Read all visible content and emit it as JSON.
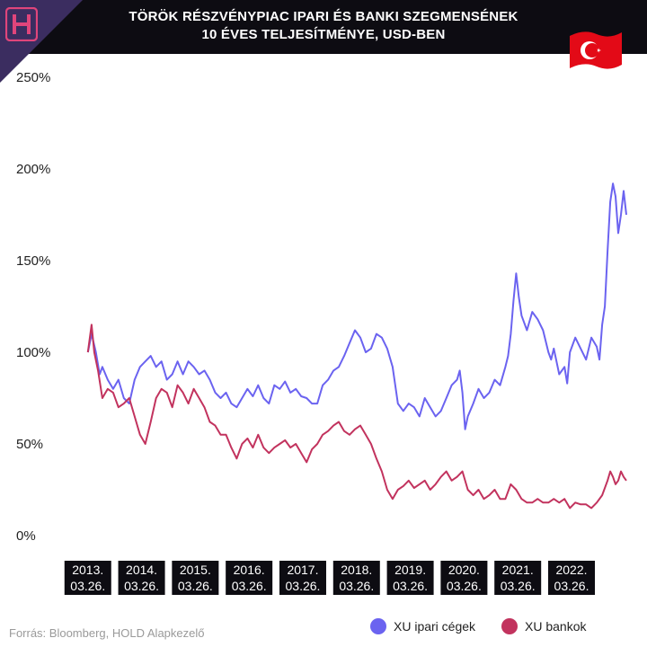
{
  "header": {
    "title_line1": "TÖRÖK RÉSZVÉNYPIAC IPARI ÉS BANKI SZEGMENSÉNEK",
    "title_line2": "10 ÉVES TELJESÍTMÉNYE, USD-BEN",
    "logo_letter": "H",
    "flag": "turkey-flag-icon"
  },
  "source": "Forrás: Bloomberg, HOLD Alapkezelő",
  "colors": {
    "industrial": "#6b63f0",
    "banks": "#c2335e",
    "header_bg": "#0d0c12",
    "logo_bg": "#3b2d60",
    "logo_accent": "#e0457b",
    "flag_red": "#e30a17"
  },
  "chart_data": {
    "type": "line",
    "title": "TÖRÖK RÉSZVÉNYPIAC IPARI ÉS BANKI SZEGMENSÉNEK 10 ÉVES TELJESÍTMÉNYE, USD-BEN",
    "xlabel": "",
    "ylabel": "",
    "ylim": [
      0,
      250
    ],
    "xlim": [
      2013.0,
      2023.3
    ],
    "yticks": [
      0,
      50,
      100,
      150,
      200,
      250
    ],
    "ytick_labels": [
      "0%",
      "50%",
      "100%",
      "150%",
      "200%",
      "250%"
    ],
    "xticks": [
      2013.23,
      2014.23,
      2015.23,
      2016.23,
      2017.23,
      2018.23,
      2019.23,
      2020.23,
      2021.23,
      2022.23
    ],
    "xtick_labels": [
      "2013.\n03.26.",
      "2014.\n03.26.",
      "2015.\n03.26.",
      "2016.\n03.26.",
      "2017.\n03.26.",
      "2018.\n03.26.",
      "2019.\n03.26.",
      "2020.\n03.26.",
      "2021.\n03.26.",
      "2022.\n03.26."
    ],
    "grid": false,
    "legend_position": "bottom-right",
    "series": [
      {
        "name": "XU ipari cégek",
        "x": [
          2013.23,
          2013.3,
          2013.38,
          2013.45,
          2013.5,
          2013.6,
          2013.7,
          2013.8,
          2013.9,
          2014.0,
          2014.1,
          2014.2,
          2014.3,
          2014.4,
          2014.5,
          2014.6,
          2014.7,
          2014.8,
          2014.9,
          2015.0,
          2015.1,
          2015.2,
          2015.3,
          2015.4,
          2015.5,
          2015.6,
          2015.7,
          2015.8,
          2015.9,
          2016.0,
          2016.1,
          2016.2,
          2016.3,
          2016.4,
          2016.5,
          2016.6,
          2016.7,
          2016.8,
          2016.9,
          2017.0,
          2017.1,
          2017.2,
          2017.3,
          2017.4,
          2017.5,
          2017.6,
          2017.7,
          2017.8,
          2017.9,
          2018.0,
          2018.1,
          2018.2,
          2018.3,
          2018.4,
          2018.5,
          2018.6,
          2018.7,
          2018.8,
          2018.9,
          2019.0,
          2019.1,
          2019.2,
          2019.3,
          2019.4,
          2019.5,
          2019.6,
          2019.7,
          2019.8,
          2019.9,
          2020.0,
          2020.1,
          2020.15,
          2020.2,
          2020.25,
          2020.3,
          2020.4,
          2020.5,
          2020.6,
          2020.7,
          2020.8,
          2020.9,
          2021.0,
          2021.05,
          2021.1,
          2021.15,
          2021.2,
          2021.25,
          2021.3,
          2021.4,
          2021.5,
          2021.6,
          2021.7,
          2021.8,
          2021.85,
          2021.9,
          2022.0,
          2022.1,
          2022.15,
          2022.2,
          2022.3,
          2022.4,
          2022.5,
          2022.6,
          2022.7,
          2022.75,
          2022.8,
          2022.85,
          2022.9,
          2022.95,
          2023.0,
          2023.05,
          2023.1,
          2023.15,
          2023.2,
          2023.25
        ],
        "values": [
          100,
          110,
          100,
          88,
          92,
          85,
          80,
          85,
          75,
          72,
          85,
          92,
          95,
          98,
          92,
          95,
          85,
          88,
          95,
          88,
          95,
          92,
          88,
          90,
          85,
          78,
          75,
          78,
          72,
          70,
          75,
          80,
          76,
          82,
          75,
          72,
          82,
          80,
          84,
          78,
          80,
          76,
          75,
          72,
          72,
          82,
          85,
          90,
          92,
          98,
          105,
          112,
          108,
          100,
          102,
          110,
          108,
          102,
          92,
          72,
          68,
          72,
          70,
          65,
          75,
          70,
          65,
          68,
          75,
          82,
          85,
          90,
          78,
          58,
          65,
          72,
          80,
          75,
          78,
          85,
          82,
          92,
          98,
          110,
          128,
          143,
          130,
          120,
          112,
          122,
          118,
          112,
          100,
          96,
          102,
          88,
          92,
          83,
          100,
          108,
          102,
          96,
          108,
          103,
          96,
          115,
          125,
          155,
          182,
          192,
          185,
          165,
          175,
          188,
          175
        ]
      },
      {
        "name": "XU bankok",
        "x": [
          2013.23,
          2013.3,
          2013.35,
          2013.42,
          2013.5,
          2013.6,
          2013.7,
          2013.8,
          2013.9,
          2014.0,
          2014.1,
          2014.2,
          2014.3,
          2014.4,
          2014.5,
          2014.6,
          2014.7,
          2014.8,
          2014.9,
          2015.0,
          2015.1,
          2015.2,
          2015.3,
          2015.4,
          2015.5,
          2015.6,
          2015.7,
          2015.8,
          2015.9,
          2016.0,
          2016.1,
          2016.2,
          2016.3,
          2016.4,
          2016.5,
          2016.6,
          2016.7,
          2016.8,
          2016.9,
          2017.0,
          2017.1,
          2017.2,
          2017.3,
          2017.4,
          2017.5,
          2017.6,
          2017.7,
          2017.8,
          2017.9,
          2018.0,
          2018.1,
          2018.2,
          2018.3,
          2018.4,
          2018.5,
          2018.6,
          2018.7,
          2018.8,
          2018.9,
          2019.0,
          2019.1,
          2019.2,
          2019.3,
          2019.4,
          2019.5,
          2019.6,
          2019.7,
          2019.8,
          2019.9,
          2020.0,
          2020.1,
          2020.2,
          2020.3,
          2020.4,
          2020.5,
          2020.6,
          2020.7,
          2020.8,
          2020.9,
          2021.0,
          2021.1,
          2021.2,
          2021.3,
          2021.4,
          2021.5,
          2021.6,
          2021.7,
          2021.8,
          2021.9,
          2022.0,
          2022.1,
          2022.2,
          2022.3,
          2022.4,
          2022.5,
          2022.6,
          2022.7,
          2022.8,
          2022.9,
          2022.95,
          2023.0,
          2023.05,
          2023.1,
          2023.15,
          2023.2,
          2023.25
        ],
        "values": [
          100,
          115,
          100,
          90,
          75,
          80,
          78,
          70,
          72,
          75,
          65,
          55,
          50,
          62,
          75,
          80,
          78,
          70,
          82,
          78,
          72,
          80,
          75,
          70,
          62,
          60,
          55,
          55,
          48,
          42,
          50,
          53,
          48,
          55,
          48,
          45,
          48,
          50,
          52,
          48,
          50,
          45,
          40,
          47,
          50,
          55,
          57,
          60,
          62,
          57,
          55,
          58,
          60,
          55,
          50,
          42,
          35,
          25,
          20,
          25,
          27,
          30,
          26,
          28,
          30,
          25,
          28,
          32,
          35,
          30,
          32,
          35,
          25,
          22,
          25,
          20,
          22,
          25,
          20,
          20,
          28,
          25,
          20,
          18,
          18,
          20,
          18,
          18,
          20,
          18,
          20,
          15,
          18,
          17,
          17,
          15,
          18,
          22,
          30,
          35,
          32,
          28,
          30,
          35,
          32,
          30
        ]
      }
    ]
  }
}
